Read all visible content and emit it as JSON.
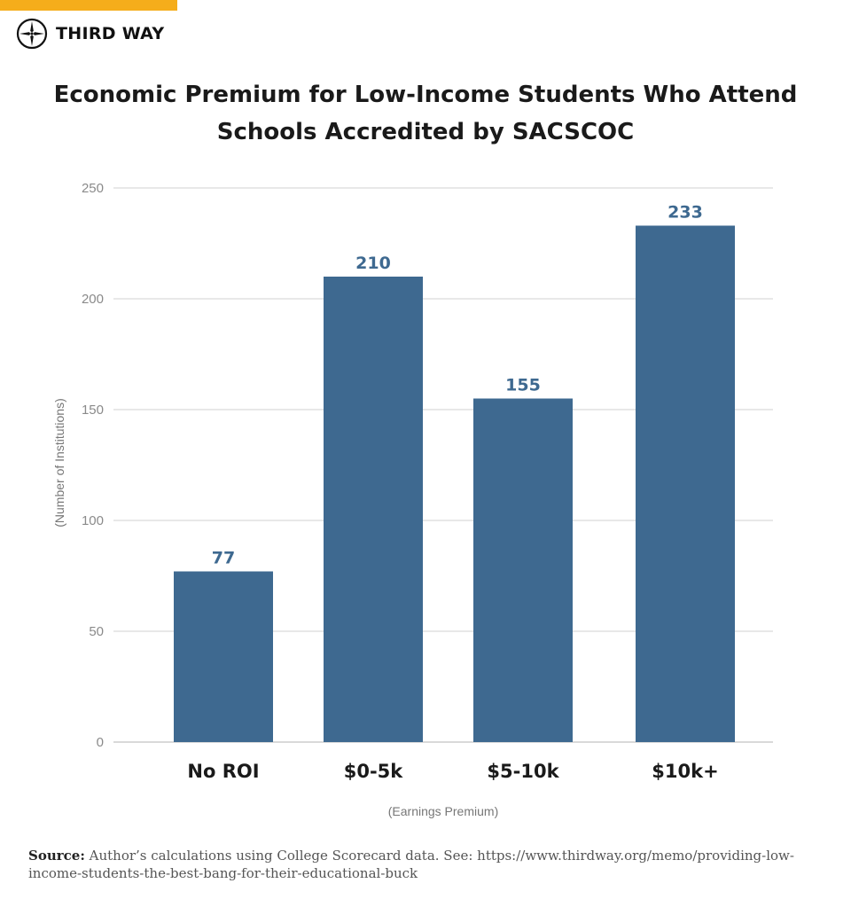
{
  "brand": {
    "name": "THIRD WAY",
    "accent_color": "#f5ad1b",
    "logo_icon": "compass-star-icon"
  },
  "chart_data": {
    "type": "bar",
    "title_lines": [
      "Economic Premium for Low-Income Students Who Attend",
      "Schools Accredited by SACSCOC"
    ],
    "categories": [
      "No ROI",
      "$0-5k",
      "$5-10k",
      "$10k+"
    ],
    "values": [
      77,
      210,
      155,
      233
    ],
    "data_labels": [
      "77",
      "210",
      "155",
      "233"
    ],
    "xlabel": "(Earnings Premium)",
    "ylabel": "(Number of Institutions)",
    "ylim": [
      0,
      250
    ],
    "yticks": [
      0,
      50,
      100,
      150,
      200,
      250
    ],
    "ytick_labels": [
      "0",
      "50",
      "100",
      "150",
      "200",
      "250"
    ],
    "grid": true,
    "bar_color": "#3e6990"
  },
  "source": {
    "label": "Source:",
    "text": "Author’s calculations using College Scorecard data. See: https://www.thirdway.org/memo/providing-low-income-students-the-best-bang-for-their-educational-buck"
  }
}
